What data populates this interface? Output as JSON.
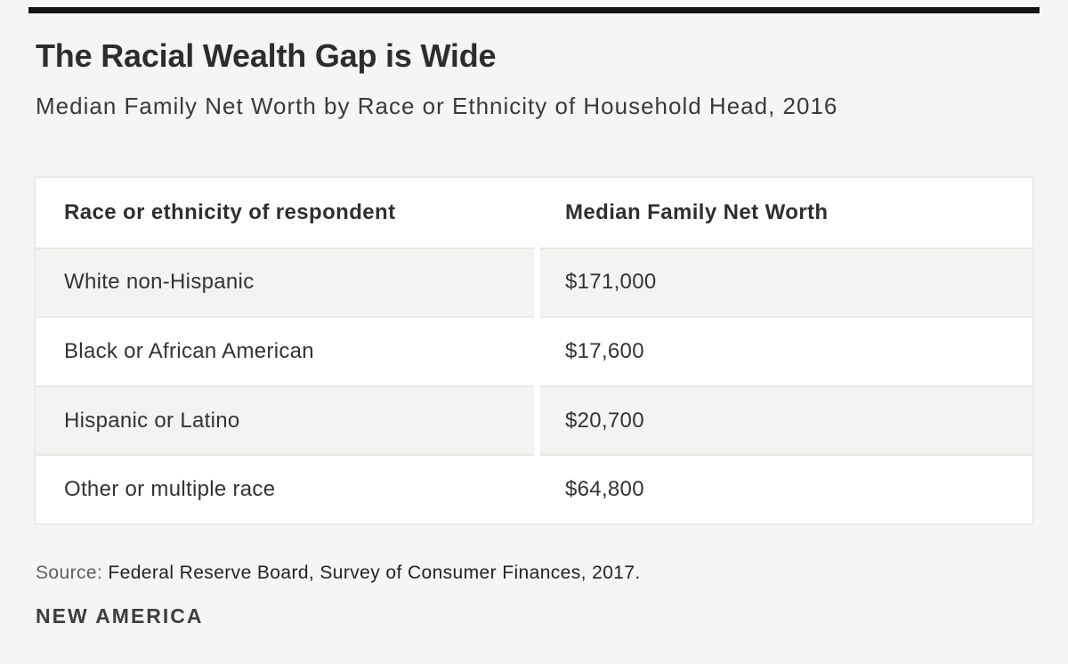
{
  "page": {
    "background": "#f5f5f4",
    "accent_bar_color": "#141414",
    "shade_row_color": "#f3f3f1"
  },
  "header": {
    "title": "The Racial Wealth Gap is Wide",
    "subtitle": "Median Family Net Worth by Race or Ethnicity of Household Head, 2016"
  },
  "table": {
    "columns": [
      "Race or ethnicity of respondent",
      "Median Family Net Worth"
    ],
    "rows": [
      {
        "label": "White non-Hispanic",
        "value": "$171,000"
      },
      {
        "label": "Black or African American",
        "value": "$17,600"
      },
      {
        "label": "Hispanic or Latino",
        "value": "$20,700"
      },
      {
        "label": "Other or multiple race",
        "value": "$64,800"
      }
    ]
  },
  "footer": {
    "source_label": "Source:",
    "source_text": " Federal Reserve Board, Survey of Consumer Finances, 2017.",
    "logo_text": "NEW AMERICA"
  },
  "chart_data": {
    "type": "table",
    "title": "The Racial Wealth Gap is Wide",
    "subtitle": "Median Family Net Worth by Race or Ethnicity of Household Head, 2016",
    "columns": [
      "Race or ethnicity of respondent",
      "Median Family Net Worth"
    ],
    "categories": [
      "White non-Hispanic",
      "Black or African American",
      "Hispanic or Latino",
      "Other or multiple race"
    ],
    "values": [
      171000,
      17600,
      20700,
      64800
    ],
    "value_labels": [
      "$171,000",
      "$17,600",
      "$20,700",
      "$64,800"
    ],
    "source": "Federal Reserve Board, Survey of Consumer Finances, 2017.",
    "publisher": "NEW AMERICA"
  }
}
